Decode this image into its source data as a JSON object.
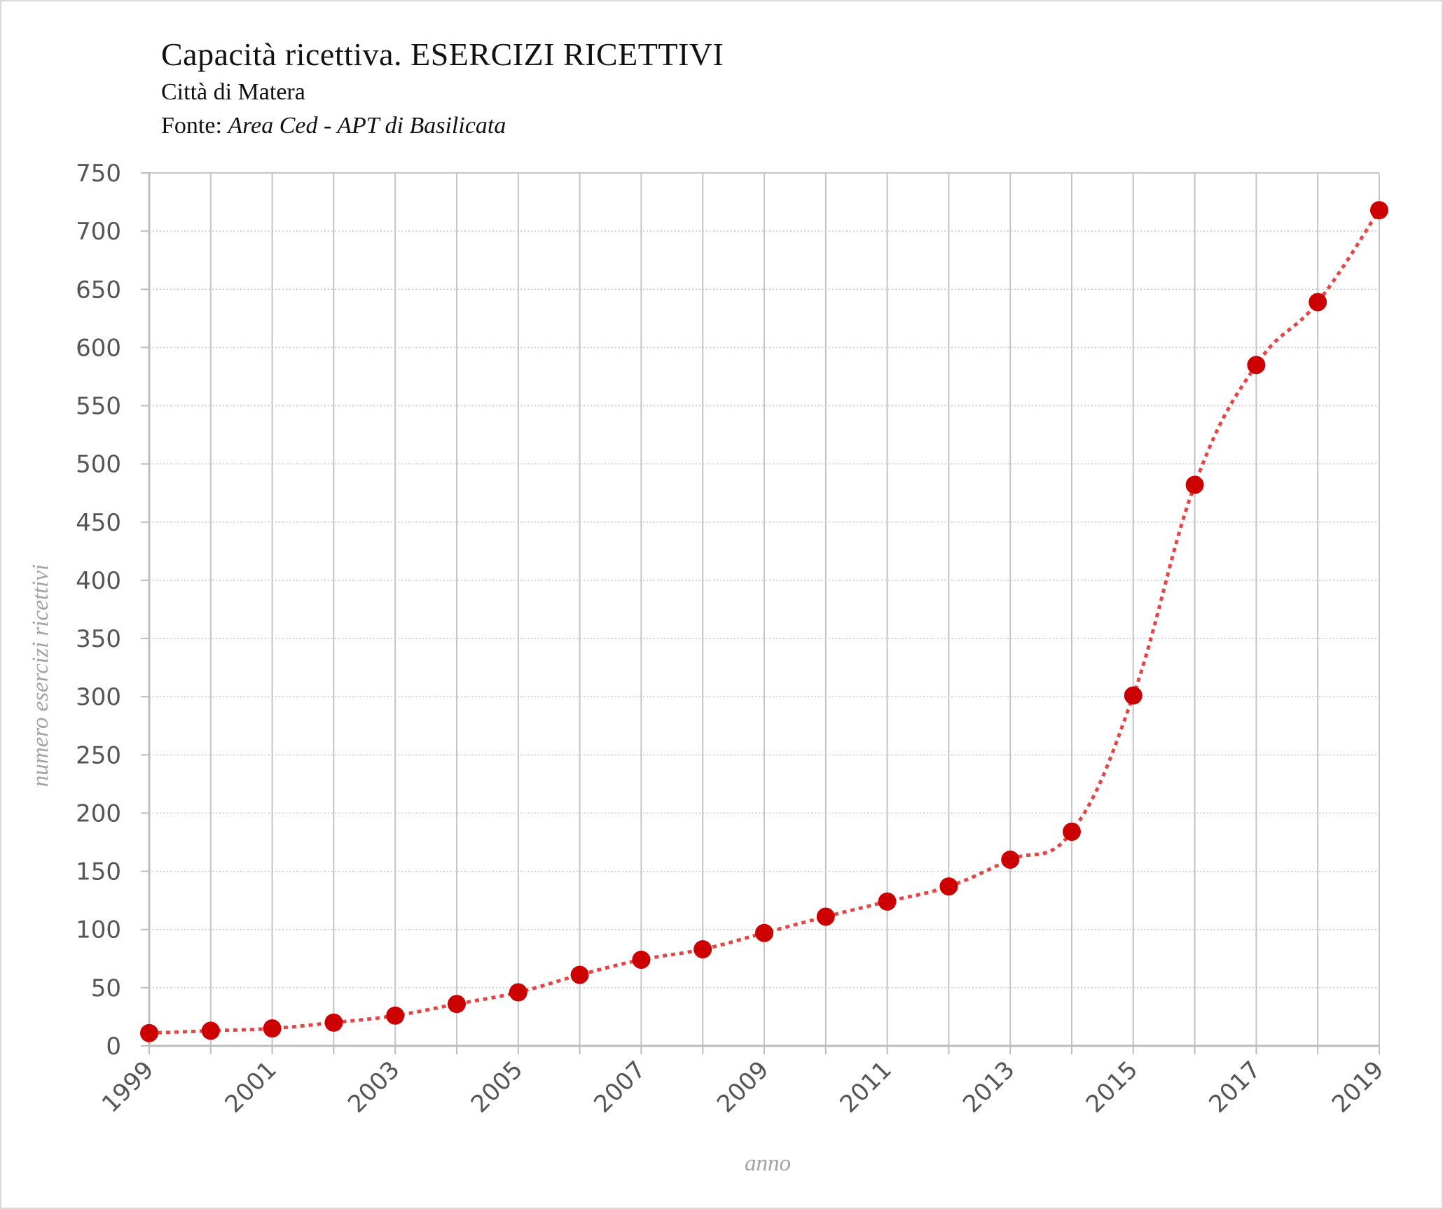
{
  "chart_data": {
    "type": "line",
    "title": "Capacità ricettiva. ESERCIZI RICETTIVI",
    "subtitle": "Città di Matera",
    "source_prefix": "Fonte: ",
    "source_name": "Area Ced - APT di Basilicata",
    "xlabel": "anno",
    "ylabel": "numero esercizi ricettivi",
    "ylim": [
      0,
      750
    ],
    "y_ticks": [
      0,
      50,
      100,
      150,
      200,
      250,
      300,
      350,
      400,
      450,
      500,
      550,
      600,
      650,
      700,
      750
    ],
    "x_ticks": [
      "1999",
      "2001",
      "2003",
      "2005",
      "2007",
      "2009",
      "2011",
      "2013",
      "2015",
      "2017",
      "2019"
    ],
    "grid": "vertical solid lines per year, horizontal dotted lines",
    "series": [
      {
        "color": "#cc0000",
        "line_color": "#e64545",
        "x": [
          1999,
          2000,
          2001,
          2002,
          2003,
          2004,
          2005,
          2006,
          2007,
          2008,
          2009,
          2010,
          2011,
          2012,
          2013,
          2014,
          2015,
          2016,
          2017,
          2018,
          2019
        ],
        "values": [
          11,
          13,
          15,
          20,
          26,
          36,
          46,
          61,
          74,
          83,
          97,
          111,
          124,
          137,
          160,
          184,
          301,
          482,
          585,
          639,
          718
        ]
      }
    ]
  }
}
